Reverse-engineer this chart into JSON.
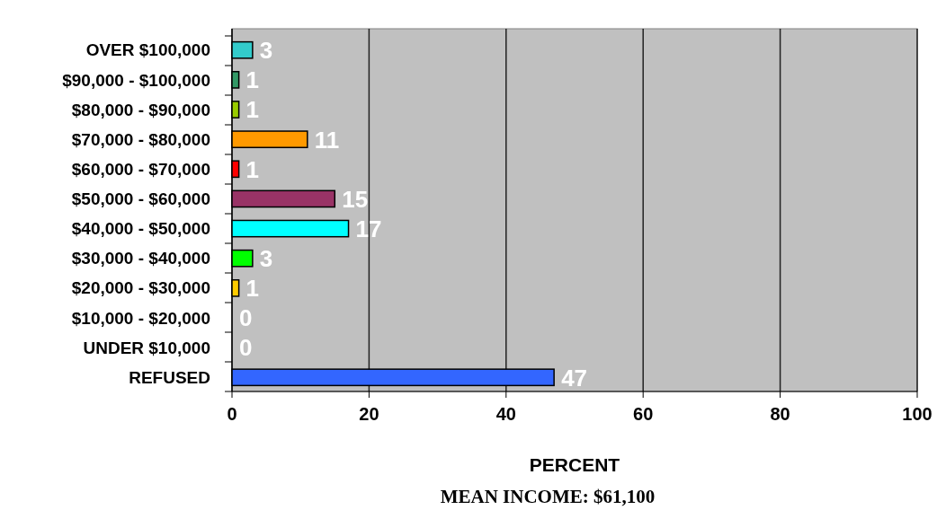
{
  "chart_data": {
    "type": "bar",
    "orientation": "horizontal",
    "xlabel": "PERCENT",
    "categories": [
      "OVER $100,000",
      "$90,000 - $100,000",
      "$80,000 - $90,000",
      "$70,000 - $80,000",
      "$60,000 - $70,000",
      "$50,000 - $60,000",
      "$40,000 - $50,000",
      "$30,000 - $40,000",
      "$20,000 - $30,000",
      "$10,000 - $20,000",
      "UNDER $10,000",
      "REFUSED"
    ],
    "values": [
      3,
      1,
      1,
      11,
      1,
      15,
      17,
      3,
      1,
      0,
      0,
      47
    ],
    "colors": [
      "#33cccc",
      "#339966",
      "#99cc00",
      "#ff9900",
      "#ff0000",
      "#993366",
      "#00ffff",
      "#00ff00",
      "#ffcc00",
      "#cc00cc",
      "#cccc00",
      "#3366ff"
    ],
    "xlim": [
      0,
      100
    ],
    "xticks": [
      0,
      20,
      40,
      60,
      80,
      100
    ],
    "grid": "x",
    "data_labels": true,
    "annotations": [
      "MEAN INCOME: $61,100"
    ]
  }
}
